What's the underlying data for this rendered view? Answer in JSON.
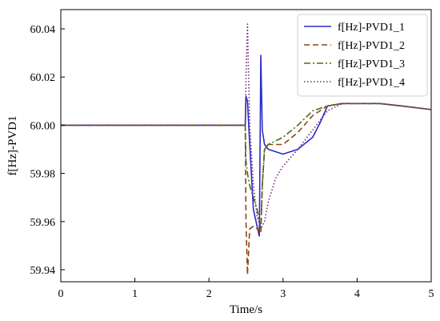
{
  "chart_data": {
    "type": "line",
    "title": "",
    "xlabel": "Time/s",
    "ylabel": "f[Hz]-PVD1",
    "xlim": [
      0,
      5
    ],
    "ylim": [
      59.935,
      60.048
    ],
    "xticks": [
      "0",
      "1",
      "2",
      "3",
      "4",
      "5"
    ],
    "yticks": [
      "59.94",
      "59.96",
      "59.98",
      "60.00",
      "60.02",
      "60.04"
    ],
    "legend_position": "top-right",
    "grid": false,
    "series": [
      {
        "name": "f[Hz]-PVD1_1",
        "color": "#2b2bc8",
        "dash": "solid",
        "points": [
          [
            0,
            60.0
          ],
          [
            2.49,
            60.0
          ],
          [
            2.5,
            60.012
          ],
          [
            2.52,
            60.01
          ],
          [
            2.55,
            59.992
          ],
          [
            2.6,
            59.965
          ],
          [
            2.65,
            59.958
          ],
          [
            2.68,
            59.954
          ],
          [
            2.7,
            60.029
          ],
          [
            2.72,
            59.998
          ],
          [
            2.75,
            59.992
          ],
          [
            2.8,
            59.99
          ],
          [
            2.9,
            59.989
          ],
          [
            3.0,
            59.988
          ],
          [
            3.2,
            59.99
          ],
          [
            3.4,
            59.995
          ],
          [
            3.5,
            60.001
          ],
          [
            3.6,
            60.008
          ],
          [
            3.8,
            60.009
          ],
          [
            4.0,
            60.009
          ],
          [
            4.3,
            60.009
          ],
          [
            4.6,
            60.008
          ],
          [
            5.0,
            60.0065
          ]
        ]
      },
      {
        "name": "f[Hz]-PVD1_2",
        "color": "#8b4513",
        "dash": "7,4",
        "points": [
          [
            0,
            60.0
          ],
          [
            2.49,
            60.0
          ],
          [
            2.5,
            59.96
          ],
          [
            2.52,
            59.938
          ],
          [
            2.55,
            59.957
          ],
          [
            2.6,
            59.958
          ],
          [
            2.65,
            59.957
          ],
          [
            2.7,
            59.955
          ],
          [
            2.72,
            59.975
          ],
          [
            2.75,
            59.99
          ],
          [
            2.8,
            59.992
          ],
          [
            3.0,
            59.992
          ],
          [
            3.2,
            59.997
          ],
          [
            3.4,
            60.004
          ],
          [
            3.6,
            60.008
          ],
          [
            3.8,
            60.009
          ],
          [
            4.0,
            60.009
          ],
          [
            4.3,
            60.009
          ],
          [
            4.6,
            60.008
          ],
          [
            5.0,
            60.0065
          ]
        ]
      },
      {
        "name": "f[Hz]-PVD1_3",
        "color": "#4a6b1a",
        "dash": "8,3,2,3",
        "points": [
          [
            0,
            60.0
          ],
          [
            2.49,
            60.0
          ],
          [
            2.5,
            59.985
          ],
          [
            2.52,
            59.98
          ],
          [
            2.55,
            59.975
          ],
          [
            2.6,
            59.97
          ],
          [
            2.65,
            59.965
          ],
          [
            2.7,
            59.957
          ],
          [
            2.72,
            59.975
          ],
          [
            2.75,
            59.99
          ],
          [
            2.8,
            59.992
          ],
          [
            3.0,
            59.995
          ],
          [
            3.2,
            60.0
          ],
          [
            3.4,
            60.006
          ],
          [
            3.6,
            60.008
          ],
          [
            3.8,
            60.009
          ],
          [
            4.0,
            60.009
          ],
          [
            4.3,
            60.009
          ],
          [
            4.6,
            60.008
          ],
          [
            5.0,
            60.0065
          ]
        ]
      },
      {
        "name": "f[Hz]-PVD1_4",
        "color": "#7a2a7a",
        "dash": "1.5,2.5",
        "points": [
          [
            0,
            60.0
          ],
          [
            2.49,
            60.0
          ],
          [
            2.5,
            60.02
          ],
          [
            2.52,
            60.042
          ],
          [
            2.55,
            60.0
          ],
          [
            2.6,
            59.975
          ],
          [
            2.65,
            59.962
          ],
          [
            2.7,
            59.957
          ],
          [
            2.75,
            59.96
          ],
          [
            2.8,
            59.968
          ],
          [
            2.9,
            59.978
          ],
          [
            3.0,
            59.983
          ],
          [
            3.2,
            59.99
          ],
          [
            3.4,
            59.998
          ],
          [
            3.6,
            60.006
          ],
          [
            3.8,
            60.009
          ],
          [
            4.0,
            60.009
          ],
          [
            4.3,
            60.009
          ],
          [
            4.6,
            60.008
          ],
          [
            5.0,
            60.0065
          ]
        ]
      }
    ]
  }
}
